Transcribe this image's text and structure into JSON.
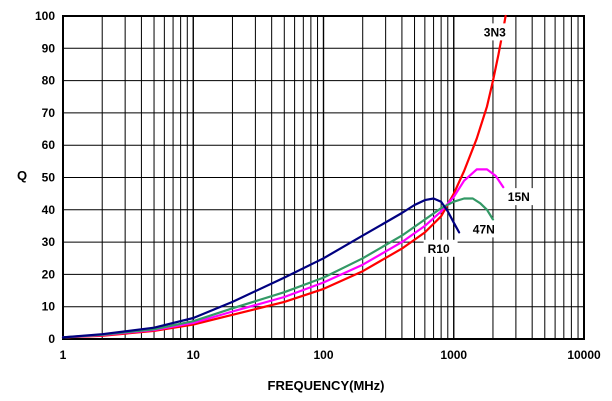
{
  "chart_data": {
    "type": "line",
    "xlabel": "FREQUENCY(MHz)",
    "ylabel": "Q",
    "x_scale": "log",
    "xlim": [
      1,
      10000
    ],
    "ylim": [
      0,
      100
    ],
    "x_ticks": [
      1,
      10,
      100,
      1000,
      10000
    ],
    "x_tick_labels": [
      "1",
      "10",
      "100",
      "1000",
      "10000"
    ],
    "y_ticks": [
      0,
      10,
      20,
      30,
      40,
      50,
      60,
      70,
      80,
      90,
      100
    ],
    "y_tick_labels": [
      "0",
      "10",
      "20",
      "30",
      "40",
      "50",
      "60",
      "70",
      "80",
      "90",
      "100"
    ],
    "grid": true,
    "legend": "none",
    "series": [
      {
        "name": "3N3",
        "color": "#ff0000",
        "x": [
          1,
          2,
          5,
          10,
          20,
          50,
          100,
          200,
          400,
          600,
          800,
          1000,
          1200,
          1500,
          1800,
          2000,
          2200,
          2400,
          2500
        ],
        "y": [
          0.5,
          1,
          2.5,
          4.5,
          7.5,
          11.5,
          15.5,
          21,
          28,
          33,
          38,
          45,
          52,
          62,
          72,
          80,
          88,
          96,
          100
        ]
      },
      {
        "name": "15N",
        "color": "#ff00ff",
        "x": [
          1,
          2,
          5,
          10,
          20,
          50,
          100,
          200,
          400,
          600,
          800,
          1000,
          1200,
          1500,
          1800,
          2100,
          2400
        ],
        "y": [
          0.5,
          1.2,
          2.8,
          5,
          8.5,
          13,
          17.5,
          23,
          30,
          35,
          39.5,
          44,
          49,
          52.5,
          52.5,
          50.5,
          47
        ]
      },
      {
        "name": "47N",
        "color": "#339966",
        "x": [
          1,
          2,
          5,
          10,
          20,
          50,
          100,
          200,
          400,
          600,
          800,
          1000,
          1200,
          1400,
          1600,
          1800,
          2000
        ],
        "y": [
          0.5,
          1.3,
          3,
          5.5,
          9.5,
          14.5,
          19,
          25,
          32,
          37,
          40.5,
          42.5,
          43.5,
          43.5,
          42,
          40,
          37
        ]
      },
      {
        "name": "R10",
        "color": "#000080",
        "x": [
          1,
          2,
          5,
          10,
          20,
          50,
          100,
          200,
          400,
          500,
          600,
          700,
          800,
          900,
          1000,
          1100
        ],
        "y": [
          0.5,
          1.5,
          3.5,
          6.5,
          11.5,
          19,
          25,
          32,
          39,
          41.5,
          43,
          43.5,
          42.5,
          39.5,
          36,
          33
        ]
      }
    ],
    "annotations": [
      {
        "text": "3N3",
        "x": 1700,
        "y": 94
      },
      {
        "text": "15N",
        "x": 2600,
        "y": 43
      },
      {
        "text": "47N",
        "x": 1400,
        "y": 33
      },
      {
        "text": "R10",
        "x": 630,
        "y": 27
      }
    ]
  }
}
